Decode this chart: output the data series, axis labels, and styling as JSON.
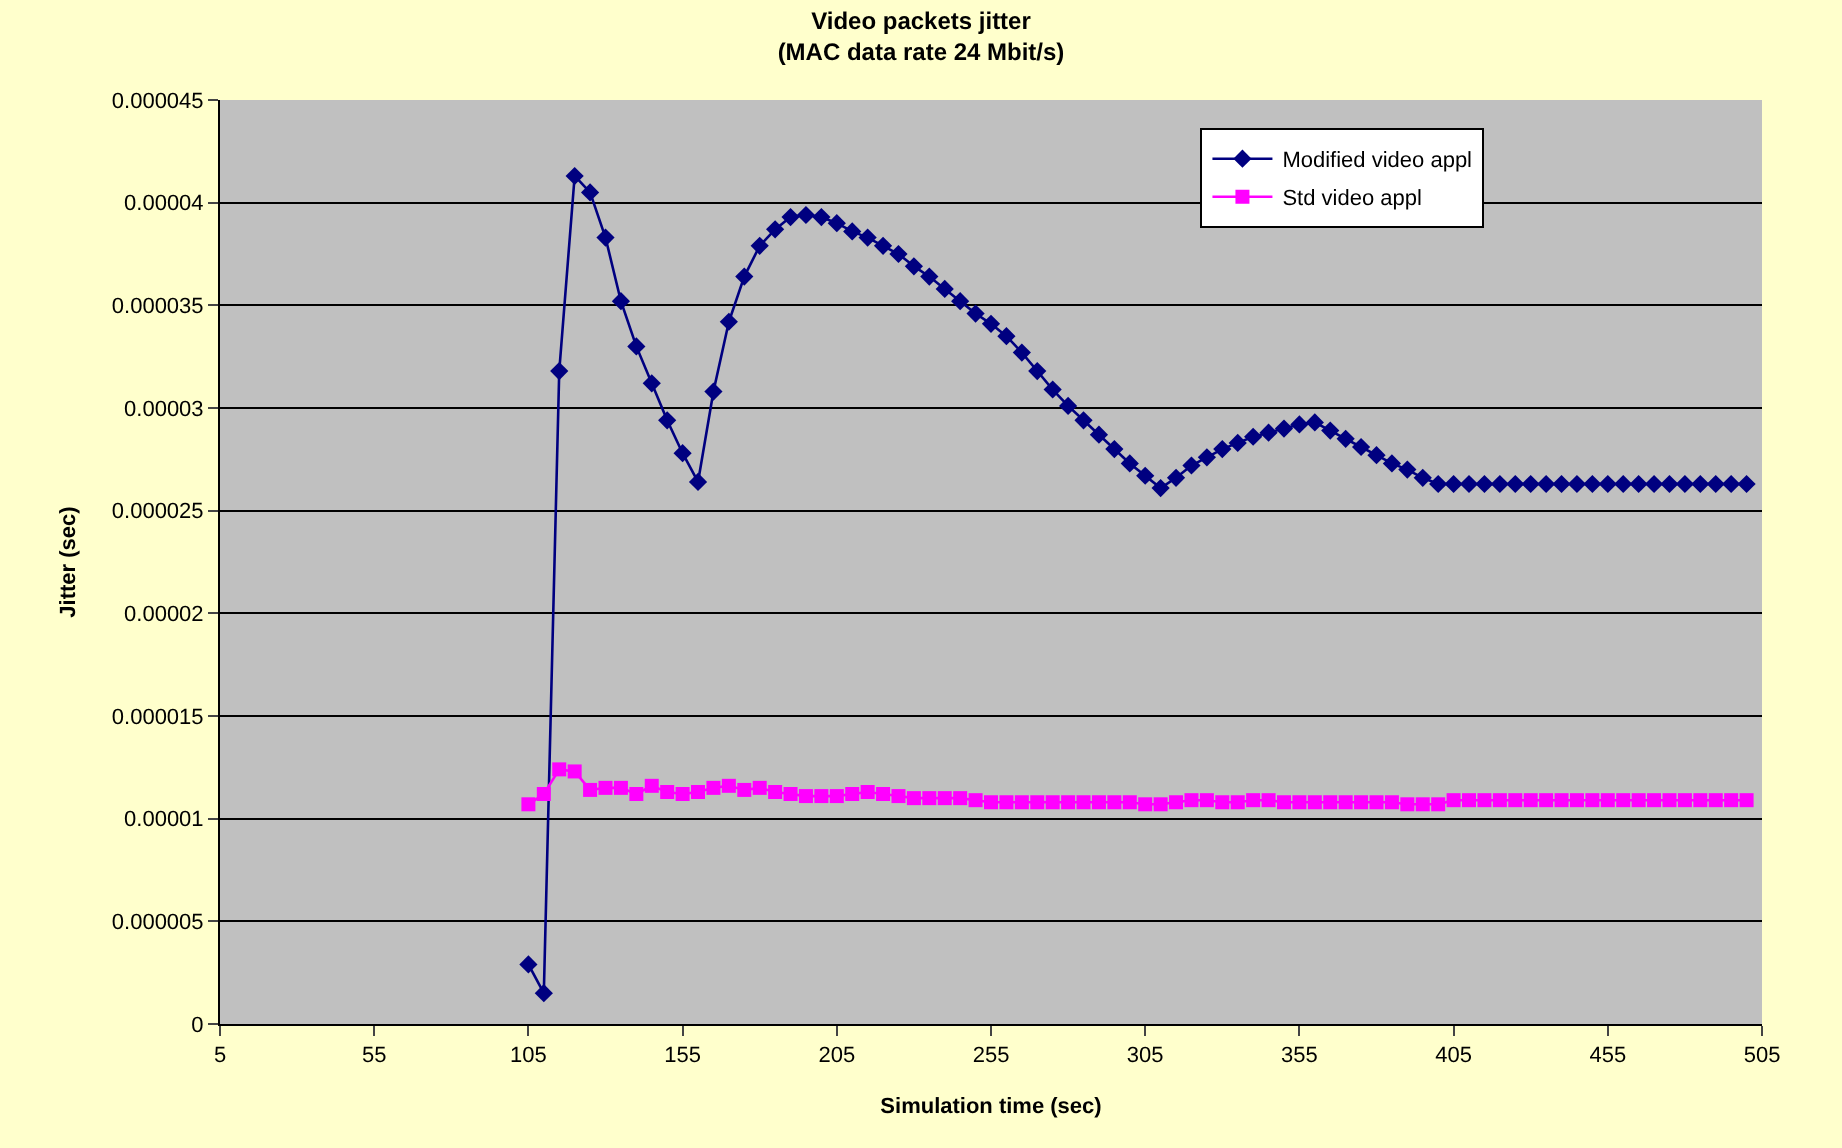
{
  "chart_data": {
    "type": "line",
    "title": "Video packets jitter\n(MAC data rate 24 Mbit/s)",
    "xlabel": "Simulation time (sec)",
    "ylabel": "Jitter (sec)",
    "x": [
      105,
      110,
      115,
      120,
      125,
      130,
      135,
      140,
      145,
      150,
      155,
      160,
      165,
      170,
      175,
      180,
      185,
      190,
      195,
      200,
      205,
      210,
      215,
      220,
      225,
      230,
      235,
      240,
      245,
      250,
      255,
      260,
      265,
      270,
      275,
      280,
      285,
      290,
      295,
      300,
      305,
      310,
      315,
      320,
      325,
      330,
      335,
      340,
      345,
      350,
      355,
      360,
      365,
      370,
      375,
      380,
      385,
      390,
      395,
      400,
      405,
      410,
      415,
      420,
      425,
      430,
      435,
      440,
      445,
      450,
      455,
      460,
      465,
      470,
      475,
      480,
      485,
      490,
      495,
      500
    ],
    "series": [
      {
        "name": "Modified video appl",
        "color": "#000080",
        "marker": "diamond",
        "values": [
          2.9e-06,
          1.5e-06,
          3.18e-05,
          4.13e-05,
          4.05e-05,
          3.83e-05,
          3.52e-05,
          3.3e-05,
          3.12e-05,
          2.94e-05,
          2.78e-05,
          2.64e-05,
          3.08e-05,
          3.42e-05,
          3.64e-05,
          3.79e-05,
          3.87e-05,
          3.93e-05,
          3.94e-05,
          3.93e-05,
          3.9e-05,
          3.86e-05,
          3.83e-05,
          3.79e-05,
          3.75e-05,
          3.69e-05,
          3.64e-05,
          3.58e-05,
          3.52e-05,
          3.46e-05,
          3.41e-05,
          3.35e-05,
          3.27e-05,
          3.18e-05,
          3.09e-05,
          3.01e-05,
          2.94e-05,
          2.87e-05,
          2.8e-05,
          2.73e-05,
          2.67e-05,
          2.61e-05,
          2.66e-05,
          2.72e-05,
          2.76e-05,
          2.8e-05,
          2.83e-05,
          2.86e-05,
          2.88e-05,
          2.9e-05,
          2.92e-05,
          2.93e-05,
          2.89e-05,
          2.85e-05,
          2.81e-05,
          2.77e-05,
          2.73e-05,
          2.7e-05,
          2.66e-05,
          2.63e-05,
          2.63e-05,
          2.63e-05,
          2.63e-05,
          2.63e-05,
          2.63e-05,
          2.63e-05,
          2.63e-05,
          2.63e-05,
          2.63e-05,
          2.63e-05,
          2.63e-05,
          2.63e-05,
          2.63e-05,
          2.63e-05,
          2.63e-05,
          2.63e-05,
          2.63e-05,
          2.63e-05,
          2.63e-05,
          2.63e-05
        ]
      },
      {
        "name": "Std video appl",
        "color": "#ff00ff",
        "marker": "square",
        "values": [
          1.07e-05,
          1.12e-05,
          1.24e-05,
          1.23e-05,
          1.14e-05,
          1.15e-05,
          1.15e-05,
          1.12e-05,
          1.16e-05,
          1.13e-05,
          1.12e-05,
          1.13e-05,
          1.15e-05,
          1.16e-05,
          1.14e-05,
          1.15e-05,
          1.13e-05,
          1.12e-05,
          1.11e-05,
          1.11e-05,
          1.11e-05,
          1.12e-05,
          1.13e-05,
          1.12e-05,
          1.11e-05,
          1.1e-05,
          1.1e-05,
          1.1e-05,
          1.1e-05,
          1.09e-05,
          1.08e-05,
          1.08e-05,
          1.08e-05,
          1.08e-05,
          1.08e-05,
          1.08e-05,
          1.08e-05,
          1.08e-05,
          1.08e-05,
          1.08e-05,
          1.07e-05,
          1.07e-05,
          1.08e-05,
          1.09e-05,
          1.09e-05,
          1.08e-05,
          1.08e-05,
          1.09e-05,
          1.09e-05,
          1.08e-05,
          1.08e-05,
          1.08e-05,
          1.08e-05,
          1.08e-05,
          1.08e-05,
          1.08e-05,
          1.08e-05,
          1.07e-05,
          1.07e-05,
          1.07e-05,
          1.09e-05,
          1.09e-05,
          1.09e-05,
          1.09e-05,
          1.09e-05,
          1.09e-05,
          1.09e-05,
          1.09e-05,
          1.09e-05,
          1.09e-05,
          1.09e-05,
          1.09e-05,
          1.09e-05,
          1.09e-05,
          1.09e-05,
          1.09e-05,
          1.09e-05,
          1.09e-05,
          1.09e-05,
          1.09e-05
        ]
      }
    ],
    "xlim": [
      5,
      505
    ],
    "xticks": [
      5,
      55,
      105,
      155,
      205,
      255,
      305,
      355,
      405,
      455,
      505
    ],
    "ylim": [
      0,
      4.5e-05
    ],
    "yticks": [
      0,
      {
        "value": 5e-06,
        "label": "0.000005"
      },
      {
        "value": 1e-05,
        "label": "0.00001"
      },
      {
        "value": 1.5e-05,
        "label": "0.000015"
      },
      {
        "value": 2e-05,
        "label": "0.00002"
      },
      {
        "value": 2.5e-05,
        "label": "0.000025"
      },
      {
        "value": 3e-05,
        "label": "0.00003"
      },
      {
        "value": 3.5e-05,
        "label": "0.000035"
      },
      {
        "value": 4e-05,
        "label": "0.00004"
      },
      {
        "value": 4.5e-05,
        "label": "0.000045"
      }
    ],
    "grid": "y",
    "legend": "top right",
    "line_style": "solid"
  }
}
